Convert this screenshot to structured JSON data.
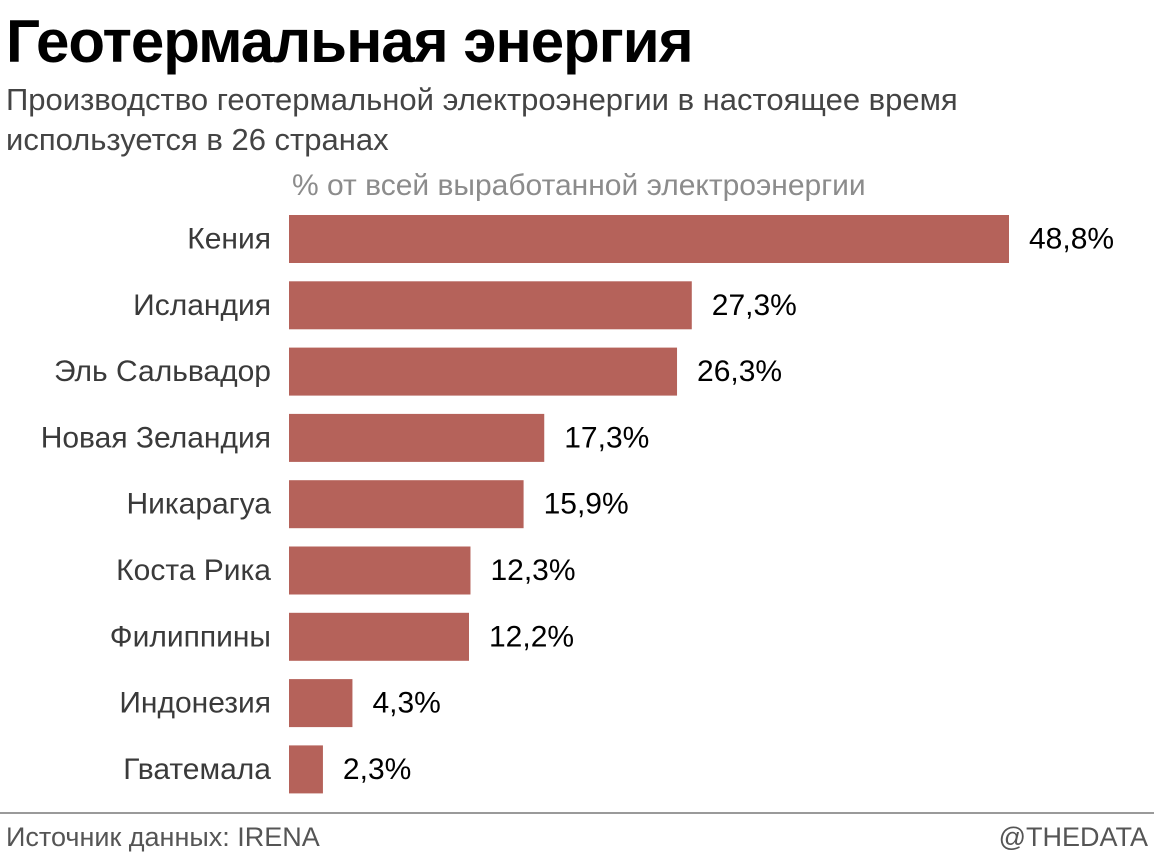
{
  "header": {
    "title": "Геотермальная энергия",
    "subtitle_line1": "Производство геотермальной электроэнергии в настоящее время",
    "subtitle_line2": "используется в 26 странах"
  },
  "footer": {
    "source": "Источник данных: IRENA",
    "brand": "@THEDATA"
  },
  "colors": {
    "bar": "#b5625a",
    "label": "#3a3a3a",
    "value": "#000000"
  },
  "chart_data": {
    "type": "bar",
    "orientation": "horizontal",
    "title": "Геотермальная энергия",
    "subtitle": "Производство геотермальной электроэнергии в настоящее время используется в 26 странах",
    "xlabel": "% от всей выработанной электроэнергии",
    "ylabel": "",
    "xlim": [
      0,
      48.8
    ],
    "grid": false,
    "categories": [
      "Кения",
      "Исландия",
      "Эль Сальвадор",
      "Новая Зеландия",
      "Никарагуа",
      "Коста Рика",
      "Филиппины",
      "Индонезия",
      "Гватемала"
    ],
    "values": [
      48.8,
      27.3,
      26.3,
      17.3,
      15.9,
      12.3,
      12.2,
      4.3,
      2.3
    ],
    "value_labels": [
      "48,8%",
      "27,3%",
      "26,3%",
      "17,3%",
      "15,9%",
      "12,3%",
      "12,2%",
      "4,3%",
      "2,3%"
    ]
  }
}
